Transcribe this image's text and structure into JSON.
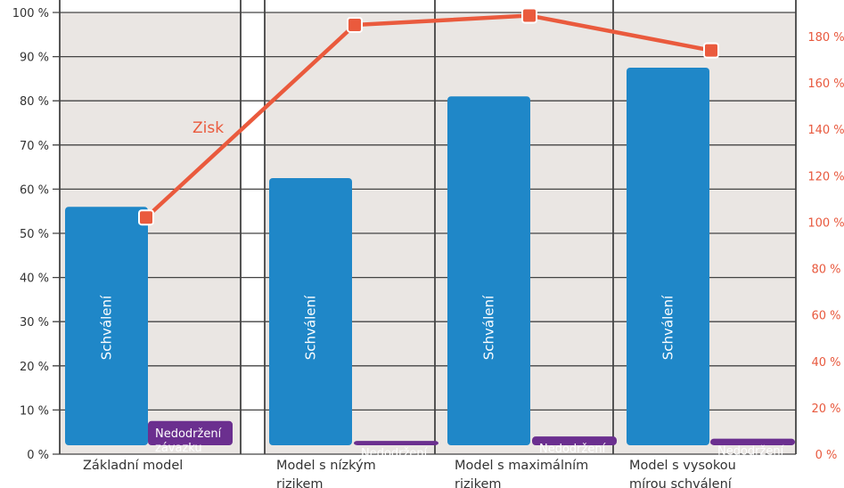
{
  "chart_data": {
    "type": "bar",
    "title": "",
    "categories": [
      [
        "Základní model"
      ],
      [
        "Model s nízkým",
        "rizikem"
      ],
      [
        "Model s maximálním",
        "rizikem"
      ],
      [
        "Model s vysokou",
        "mírou schválení"
      ]
    ],
    "series": [
      {
        "name": "Schválení",
        "axis": "left",
        "type": "bar",
        "values": [
          56,
          62.5,
          81,
          87.5
        ]
      },
      {
        "name": "Nedodržení závazku",
        "label_lines": [
          "Nedodržení",
          "závazku"
        ],
        "axis": "left",
        "type": "bar",
        "values": [
          7.5,
          3,
          4,
          3.5
        ]
      },
      {
        "name": "Zisk",
        "axis": "right",
        "type": "line",
        "values": [
          102,
          185,
          189,
          174
        ]
      }
    ],
    "y_left": {
      "min": 0,
      "max": 100,
      "step": 10,
      "unit": " %"
    },
    "y_right": {
      "min": 0,
      "max": 180,
      "step": 20,
      "unit": " %"
    },
    "grid": true,
    "colors": {
      "bar": "#1f87c8",
      "small_bar": "#6b2f8f",
      "line": "#ea5a3d",
      "plot_bg": "#eae6e3",
      "grid": "#444444",
      "right_axis_text": "#e8593e"
    }
  }
}
